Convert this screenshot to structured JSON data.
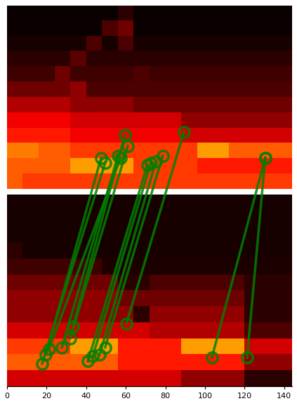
{
  "chart_data": {
    "type": "image_matches",
    "xlim": [
      0,
      144
    ],
    "xticks": [
      0,
      20,
      40,
      60,
      80,
      100,
      120,
      140
    ],
    "ylim": [
      193,
      0
    ],
    "tick_labels": "x",
    "grid": false,
    "color": "green",
    "marker": "circle",
    "color_range": [
      0,
      1
    ],
    "images": [
      {
        "x_range": [
          0,
          144
        ],
        "y_range": [
          0,
          93
        ],
        "cells": [
          [
            0,
            0,
            0,
            0,
            0,
            0,
            0,
            0.05,
            0,
            0,
            0,
            0,
            0,
            0,
            0,
            0,
            0,
            0
          ],
          [
            0,
            0,
            0,
            0,
            0,
            0,
            0.1,
            0.15,
            0,
            0,
            0,
            0,
            0,
            0,
            0,
            0,
            0,
            0
          ],
          [
            0.02,
            0.02,
            0.02,
            0.02,
            0.02,
            0.1,
            0.02,
            0.1,
            0.02,
            0.02,
            0.02,
            0.02,
            0.02,
            0.02,
            0.02,
            0.02,
            0.02,
            0.02
          ],
          [
            0.05,
            0.05,
            0.05,
            0.05,
            0.12,
            0.05,
            0.05,
            0.05,
            0.05,
            0.05,
            0.05,
            0.05,
            0.05,
            0.05,
            0.05,
            0.05,
            0.05,
            0.05
          ],
          [
            0.08,
            0.08,
            0.08,
            0.15,
            0.08,
            0.08,
            0.08,
            0.08,
            0.1,
            0.08,
            0.08,
            0.08,
            0.08,
            0.08,
            0.08,
            0.08,
            0.08,
            0.08
          ],
          [
            0.15,
            0.15,
            0.15,
            0.15,
            0.2,
            0.1,
            0.1,
            0.1,
            0.1,
            0.1,
            0.1,
            0.1,
            0.1,
            0.1,
            0.1,
            0.1,
            0.1,
            0.1
          ],
          [
            0.25,
            0.25,
            0.25,
            0.25,
            0.2,
            0.2,
            0.2,
            0.2,
            0.15,
            0.15,
            0.15,
            0.15,
            0.15,
            0.15,
            0.15,
            0.15,
            0.15,
            0.15
          ],
          [
            0.35,
            0.35,
            0.35,
            0.35,
            0.3,
            0.3,
            0.3,
            0.3,
            0.3,
            0.3,
            0.3,
            0.2,
            0.2,
            0.2,
            0.2,
            0.2,
            0.2,
            0.2
          ],
          [
            0.4,
            0.4,
            0.4,
            0.4,
            0.35,
            0.35,
            0.35,
            0.35,
            0.35,
            0.35,
            0.35,
            0.3,
            0.3,
            0.3,
            0.3,
            0.3,
            0.3,
            0.3
          ],
          [
            0.55,
            0.55,
            0.5,
            0.5,
            0.45,
            0.45,
            0.45,
            0.45,
            0.45,
            0.45,
            0.45,
            0.45,
            0.6,
            0.6,
            0.5,
            0.5,
            0.5,
            0.5
          ],
          [
            0.5,
            0.5,
            0.5,
            0.5,
            0.6,
            0.6,
            0.6,
            0.6,
            0.45,
            0.45,
            0.45,
            0.45,
            0.4,
            0.4,
            0.4,
            0.4,
            0.4,
            0.4
          ],
          [
            0.5,
            0.45,
            0.45,
            0.45,
            0.45,
            0.45,
            0.45,
            0.45,
            0.45,
            0.45,
            0.45,
            0.45,
            0.45,
            0.45,
            0.45,
            0.45,
            0.45,
            0.45
          ]
        ]
      },
      {
        "x_range": [
          0,
          144
        ],
        "y_range": [
          96,
          193
        ],
        "cells": [
          [
            0.02,
            0.02,
            0.02,
            0.02,
            0.02,
            0.02,
            0.02,
            0.02,
            0.02,
            0.02,
            0.02,
            0.02,
            0.02,
            0.02,
            0.02,
            0.02,
            0.02,
            0.02
          ],
          [
            0.02,
            0.02,
            0.02,
            0.02,
            0.02,
            0.02,
            0.02,
            0.02,
            0.02,
            0.02,
            0.02,
            0.02,
            0.02,
            0.02,
            0.02,
            0.02,
            0.02,
            0.02
          ],
          [
            0.02,
            0.02,
            0.02,
            0.02,
            0.02,
            0.02,
            0.02,
            0.02,
            0.02,
            0.02,
            0.02,
            0.02,
            0.02,
            0.02,
            0.02,
            0.02,
            0.02,
            0.02
          ],
          [
            0.05,
            0.02,
            0.02,
            0.02,
            0.02,
            0.02,
            0.02,
            0.02,
            0.02,
            0.02,
            0.02,
            0.02,
            0.02,
            0.02,
            0.02,
            0.02,
            0.02,
            0.02
          ],
          [
            0.08,
            0.08,
            0.08,
            0.08,
            0.08,
            0.08,
            0.03,
            0.03,
            0.03,
            0.03,
            0.03,
            0.03,
            0.03,
            0.03,
            0.03,
            0.03,
            0.03,
            0.03
          ],
          [
            0.15,
            0.15,
            0.15,
            0.15,
            0.15,
            0.15,
            0.15,
            0.05,
            0.05,
            0.1,
            0.1,
            0.1,
            0.1,
            0.1,
            0.1,
            0.05,
            0.05,
            0.05
          ],
          [
            0.2,
            0.2,
            0.2,
            0.2,
            0.2,
            0.2,
            0.2,
            0.15,
            0.15,
            0.15,
            0.15,
            0.15,
            0.15,
            0.15,
            0.15,
            0.05,
            0.05,
            0.05
          ],
          [
            0.2,
            0.2,
            0.2,
            0.2,
            0.2,
            0.2,
            0.2,
            0.2,
            0.05,
            0.2,
            0.2,
            0.2,
            0.2,
            0.2,
            0.2,
            0.05,
            0.05,
            0.05
          ],
          [
            0.3,
            0.3,
            0.3,
            0.3,
            0.3,
            0.3,
            0.3,
            0.3,
            0.3,
            0.25,
            0.25,
            0.25,
            0.25,
            0.25,
            0.25,
            0.1,
            0.1,
            0.1
          ],
          [
            0.45,
            0.45,
            0.45,
            0.45,
            0.6,
            0.6,
            0.6,
            0.4,
            0.4,
            0.4,
            0.4,
            0.6,
            0.6,
            0.6,
            0.6,
            0.3,
            0.3,
            0.3
          ],
          [
            0.5,
            0.5,
            0.5,
            0.5,
            0.5,
            0.5,
            0.5,
            0.4,
            0.4,
            0.4,
            0.4,
            0.4,
            0.4,
            0.4,
            0.4,
            0.2,
            0.2,
            0.2
          ],
          [
            0.3,
            0.3,
            0.3,
            0.3,
            0.3,
            0.3,
            0.3,
            0.3,
            0.3,
            0.3,
            0.3,
            0.2,
            0.2,
            0.2,
            0.2,
            0.05,
            0.05,
            0.05
          ]
        ]
      }
    ],
    "matches": [
      {
        "top": [
          59.6,
          65.5
        ],
        "bottom": [
          33.3,
          162.6
        ]
      },
      {
        "top": [
          61.0,
          71.2
        ],
        "bottom": [
          31.9,
          168.7
        ]
      },
      {
        "top": [
          56.0,
          76.2
        ],
        "bottom": [
          27.7,
          173.3
        ]
      },
      {
        "top": [
          57.4,
          77.2
        ],
        "bottom": [
          21.3,
          174.0
        ]
      },
      {
        "top": [
          47.5,
          77.2
        ],
        "bottom": [
          19.5,
          176.9
        ]
      },
      {
        "top": [
          49.6,
          79.7
        ],
        "bottom": [
          17.7,
          181.5
        ]
      },
      {
        "top": [
          70.9,
          80.8
        ],
        "bottom": [
          40.8,
          180.4
        ]
      },
      {
        "top": [
          72.7,
          79.7
        ],
        "bottom": [
          43.3,
          177.9
        ]
      },
      {
        "top": [
          75.2,
          79.0
        ],
        "bottom": [
          46.8,
          176.9
        ]
      },
      {
        "top": [
          78.7,
          76.2
        ],
        "bottom": [
          49.6,
          173.3
        ]
      },
      {
        "top": [
          89.4,
          64.1
        ],
        "bottom": [
          60.3,
          161.2
        ]
      },
      {
        "top": [
          130.5,
          77.2
        ],
        "bottom": [
          103.5,
          178.6
        ]
      },
      {
        "top": [
          130.5,
          77.2
        ],
        "bottom": [
          121.3,
          178.6
        ]
      }
    ]
  }
}
